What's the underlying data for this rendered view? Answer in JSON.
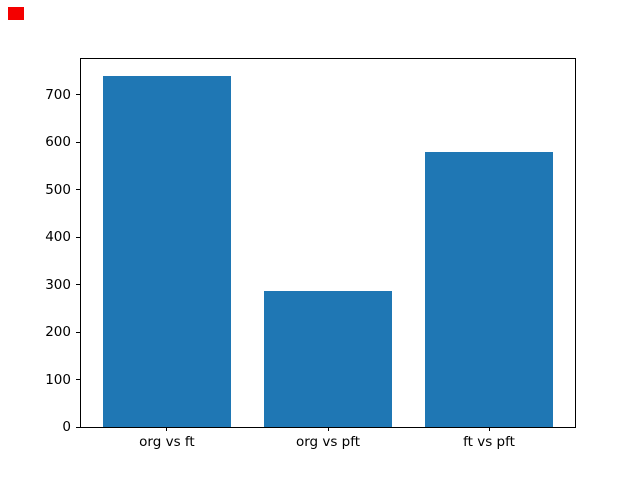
{
  "chart_data": {
    "type": "bar",
    "categories": [
      "org vs ft",
      "org vs pft",
      "ft vs pft"
    ],
    "values": [
      740,
      286,
      580
    ],
    "title": "",
    "xlabel": "",
    "ylabel": "",
    "ylim": [
      0,
      777
    ],
    "yticks": [
      0,
      100,
      200,
      300,
      400,
      500,
      600,
      700
    ],
    "bar_color": "#1f77b4",
    "bar_width_fraction": 0.8,
    "grid": false,
    "legend": "none",
    "background_color": "#ffffff",
    "spine_color": "#000000",
    "tick_label_color": "#000000"
  },
  "overlay_marker": {
    "color": "#f40000"
  }
}
